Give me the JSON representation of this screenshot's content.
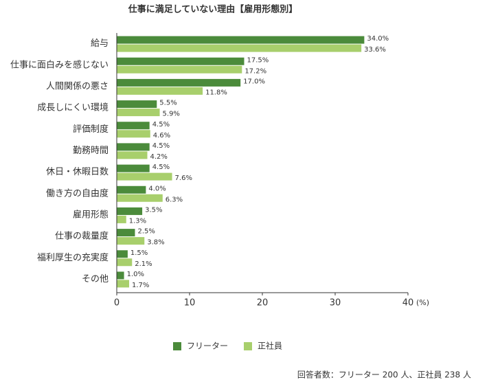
{
  "chart_data": {
    "type": "bar",
    "orientation": "horizontal",
    "title": "仕事に満足していない理由【雇用形態別】",
    "categories": [
      "給与",
      "仕事に面白みを感じない",
      "人間関係の悪さ",
      "成長しにくい環境",
      "評価制度",
      "勤務時間",
      "休日・休暇日数",
      "働き方の自由度",
      "雇用形態",
      "仕事の裁量度",
      "福利厚生の充実度",
      "その他"
    ],
    "series": [
      {
        "name": "フリーター",
        "color": "#4b8b3b",
        "values": [
          34.0,
          17.5,
          17.0,
          5.5,
          4.5,
          4.5,
          4.5,
          4.0,
          3.5,
          2.5,
          1.5,
          1.0
        ],
        "value_labels": [
          "34.0%",
          "17.5%",
          "17.0%",
          "5.5%",
          "4.5%",
          "4.5%",
          "4.5%",
          "4.0%",
          "3.5%",
          "2.5%",
          "1.5%",
          "1.0%"
        ]
      },
      {
        "name": "正社員",
        "color": "#a8cf6c",
        "values": [
          33.6,
          17.2,
          11.8,
          5.9,
          4.6,
          4.2,
          7.6,
          6.3,
          1.3,
          3.8,
          2.1,
          1.7
        ],
        "value_labels": [
          "33.6%",
          "17.2%",
          "11.8%",
          "5.9%",
          "4.6%",
          "4.2%",
          "7.6%",
          "6.3%",
          "1.3%",
          "3.8%",
          "2.1%",
          "1.7%"
        ]
      }
    ],
    "xlabel": "(%)",
    "xlim": [
      0,
      40
    ],
    "xticks": [
      0,
      10,
      20,
      30,
      40
    ],
    "note": "回答者数：フリーター 200 人、正社員 238 人"
  }
}
